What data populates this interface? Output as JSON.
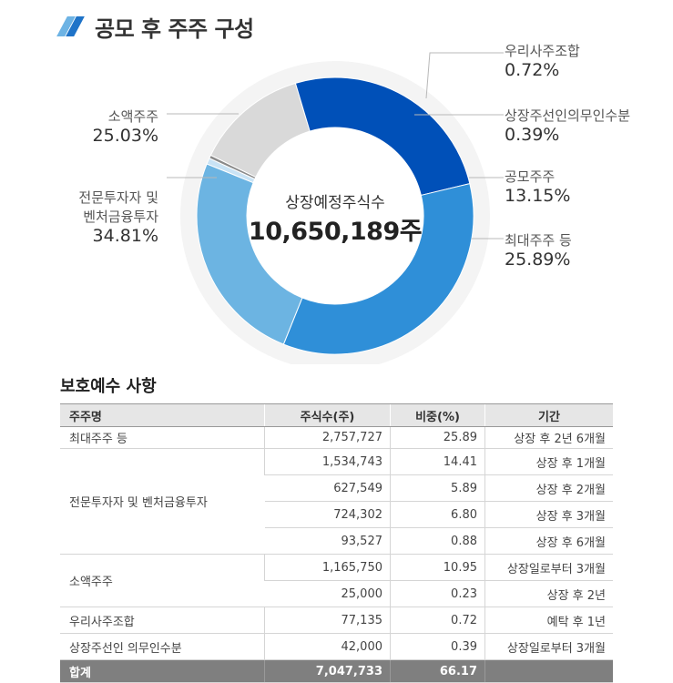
{
  "page_title": "공모 후 주주 구성",
  "chart_data": {
    "type": "pie",
    "center_label": "상장예정주식수",
    "center_value": "10,650,189주",
    "slices": [
      {
        "name": "우리사주조합",
        "pct_label": "0.72%",
        "value": 0.72,
        "color": "#c9e3f5"
      },
      {
        "name": "상장주선인의무인수분",
        "pct_label": "0.39%",
        "value": 0.39,
        "color": "#8a8a8a"
      },
      {
        "name": "공모주주",
        "pct_label": "13.15%",
        "value": 13.15,
        "color": "#d9d9d9"
      },
      {
        "name": "최대주주 등",
        "pct_label": "25.89%",
        "value": 25.89,
        "color": "#0050b8"
      },
      {
        "name": "전문투자자 및\n벤처금융투자",
        "pct_label": "34.81%",
        "value": 34.81,
        "color": "#2f8fd8"
      },
      {
        "name": "소액주주",
        "pct_label": "25.03%",
        "value": 25.03,
        "color": "#6cb4e2"
      }
    ]
  },
  "lockup": {
    "title": "보호예수 사항",
    "headers": [
      "주주명",
      "주식수(주)",
      "비중(%)",
      "기간"
    ],
    "groups": [
      {
        "name": "최대주주 등",
        "rows": [
          [
            "2,757,727",
            "25.89",
            "상장 후 2년 6개월"
          ]
        ]
      },
      {
        "name": "전문투자자 및 벤처금융투자",
        "rows": [
          [
            "1,534,743",
            "14.41",
            "상장 후 1개월"
          ],
          [
            "627,549",
            "5.89",
            "상장 후 2개월"
          ],
          [
            "724,302",
            "6.80",
            "상장 후 3개월"
          ],
          [
            "93,527",
            "0.88",
            "상장 후 6개월"
          ]
        ]
      },
      {
        "name": "소액주주",
        "rows": [
          [
            "1,165,750",
            "10.95",
            "상장일로부터 3개월"
          ],
          [
            "25,000",
            "0.23",
            "상장 후 2년"
          ]
        ]
      },
      {
        "name": "우리사주조합",
        "rows": [
          [
            "77,135",
            "0.72",
            "예탁 후 1년"
          ]
        ]
      },
      {
        "name": "상장주선인 의무인수분",
        "rows": [
          [
            "42,000",
            "0.39",
            "상장일로부터 3개월"
          ]
        ]
      }
    ],
    "total": {
      "label": "합계",
      "shares": "7,047,733",
      "pct": "66.17",
      "period": ""
    }
  }
}
